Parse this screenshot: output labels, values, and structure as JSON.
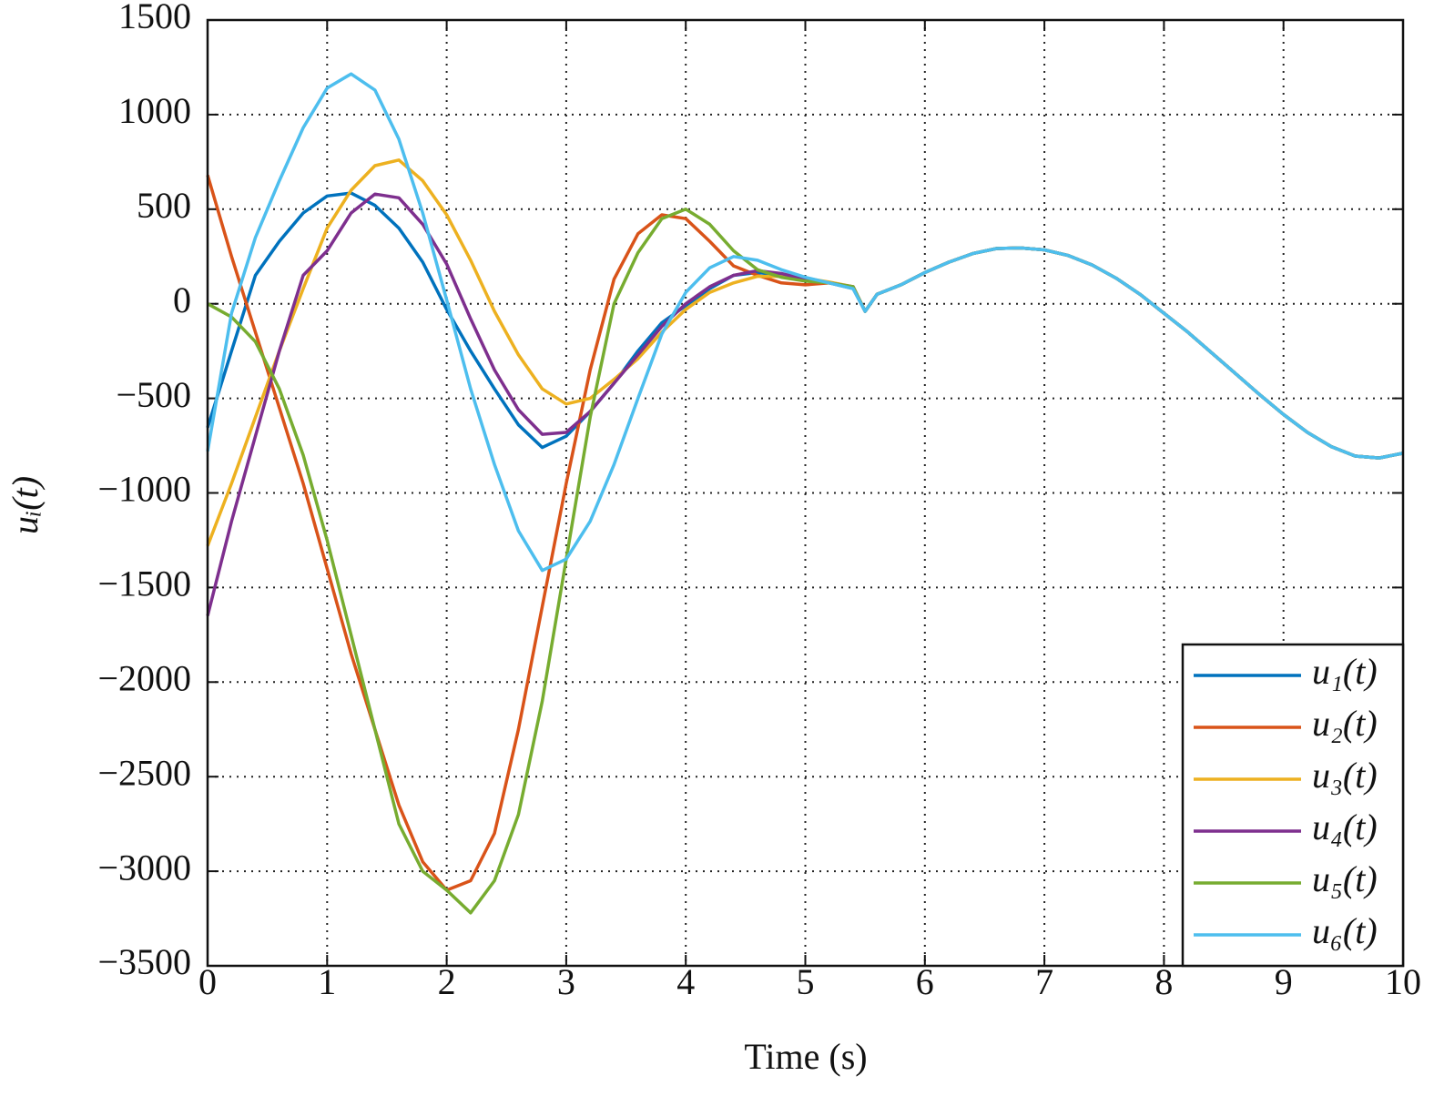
{
  "chart_data": {
    "type": "line",
    "xlabel": "Time (s)",
    "ylabel": "uᵢ(t)",
    "x": [
      0,
      0.2,
      0.4,
      0.6,
      0.8,
      1.0,
      1.2,
      1.4,
      1.6,
      1.8,
      2.0,
      2.2,
      2.4,
      2.6,
      2.8,
      3.0,
      3.2,
      3.4,
      3.6,
      3.8,
      4.0,
      4.2,
      4.4,
      4.6,
      4.8,
      5.0,
      5.2,
      5.4,
      5.5,
      5.6,
      5.8,
      6.0,
      6.2,
      6.4,
      6.6,
      6.8,
      7.0,
      7.2,
      7.4,
      7.6,
      7.8,
      8.0,
      8.2,
      8.4,
      8.6,
      8.8,
      9.0,
      9.2,
      9.4,
      9.6,
      9.8,
      10.0
    ],
    "series": [
      {
        "name": "u₁(t)",
        "color": "#0072bd",
        "values": [
          -655,
          -250,
          150,
          330,
          480,
          570,
          585,
          520,
          400,
          220,
          -30,
          -250,
          -450,
          -640,
          -760,
          -700,
          -570,
          -420,
          -250,
          -100,
          -10,
          80,
          150,
          165,
          150,
          130,
          110,
          80,
          -40,
          50,
          100,
          165,
          220,
          265,
          292,
          295,
          285,
          255,
          205,
          135,
          50,
          -50,
          -150,
          -260,
          -370,
          -480,
          -585,
          -680,
          -755,
          -805,
          -815,
          -790
        ]
      },
      {
        "name": "u₂(t)",
        "color": "#d95319",
        "values": [
          680,
          250,
          -150,
          -550,
          -950,
          -1400,
          -1850,
          -2250,
          -2650,
          -2950,
          -3100,
          -3050,
          -2800,
          -2250,
          -1600,
          -950,
          -350,
          130,
          370,
          470,
          450,
          330,
          200,
          150,
          110,
          100,
          110,
          90,
          -40,
          50,
          100,
          165,
          220,
          265,
          292,
          295,
          285,
          255,
          205,
          135,
          50,
          -50,
          -150,
          -260,
          -370,
          -480,
          -585,
          -680,
          -755,
          -805,
          -815,
          -790
        ]
      },
      {
        "name": "u₃(t)",
        "color": "#edb120",
        "values": [
          -1280,
          -950,
          -600,
          -250,
          80,
          400,
          600,
          730,
          760,
          650,
          470,
          230,
          -40,
          -270,
          -450,
          -530,
          -500,
          -400,
          -290,
          -150,
          -30,
          60,
          110,
          145,
          145,
          135,
          115,
          90,
          -40,
          50,
          100,
          165,
          220,
          265,
          292,
          295,
          285,
          255,
          205,
          135,
          50,
          -50,
          -150,
          -260,
          -370,
          -480,
          -585,
          -680,
          -755,
          -805,
          -815,
          -790
        ]
      },
      {
        "name": "u₄(t)",
        "color": "#7e2f8e",
        "values": [
          -1650,
          -1150,
          -700,
          -250,
          150,
          280,
          480,
          580,
          560,
          420,
          210,
          -80,
          -350,
          -560,
          -690,
          -680,
          -570,
          -420,
          -270,
          -120,
          0,
          90,
          150,
          175,
          160,
          130,
          110,
          90,
          -40,
          50,
          100,
          165,
          220,
          265,
          292,
          295,
          285,
          255,
          205,
          135,
          50,
          -50,
          -150,
          -260,
          -370,
          -480,
          -585,
          -680,
          -755,
          -805,
          -815,
          -790
        ]
      },
      {
        "name": "u₅(t)",
        "color": "#77ac30",
        "values": [
          0,
          -70,
          -200,
          -450,
          -800,
          -1250,
          -1750,
          -2250,
          -2750,
          -3000,
          -3100,
          -3220,
          -3050,
          -2700,
          -2100,
          -1350,
          -600,
          0,
          270,
          450,
          500,
          420,
          280,
          180,
          140,
          120,
          110,
          90,
          -40,
          50,
          100,
          165,
          220,
          265,
          292,
          295,
          285,
          255,
          205,
          135,
          50,
          -50,
          -150,
          -260,
          -370,
          -480,
          -585,
          -680,
          -755,
          -805,
          -815,
          -790
        ]
      },
      {
        "name": "u₆(t)",
        "color": "#4dbeee",
        "values": [
          -780,
          -50,
          350,
          650,
          930,
          1140,
          1215,
          1130,
          870,
          480,
          20,
          -450,
          -850,
          -1200,
          -1410,
          -1350,
          -1150,
          -850,
          -500,
          -160,
          60,
          190,
          250,
          230,
          180,
          140,
          110,
          80,
          -40,
          50,
          100,
          165,
          220,
          265,
          292,
          295,
          285,
          255,
          205,
          135,
          50,
          -50,
          -150,
          -260,
          -370,
          -480,
          -585,
          -680,
          -755,
          -805,
          -815,
          -790
        ]
      }
    ],
    "xlim": [
      0,
      10
    ],
    "xticks": [
      0,
      1,
      2,
      3,
      4,
      5,
      6,
      7,
      8,
      9,
      10
    ],
    "ylim": [
      -3500,
      1500
    ],
    "yticks": [
      {
        "value": -3500,
        "label": "−3500"
      },
      {
        "value": -3000,
        "label": "−3000"
      },
      {
        "value": -2500,
        "label": "−2500"
      },
      {
        "value": -2000,
        "label": "−2000"
      },
      {
        "value": -1500,
        "label": "−1500"
      },
      {
        "value": -1000,
        "label": "−1000"
      },
      {
        "value": -500,
        "label": "−500"
      },
      0,
      500,
      1000,
      1500
    ],
    "grid": true,
    "legend": "lower right"
  }
}
